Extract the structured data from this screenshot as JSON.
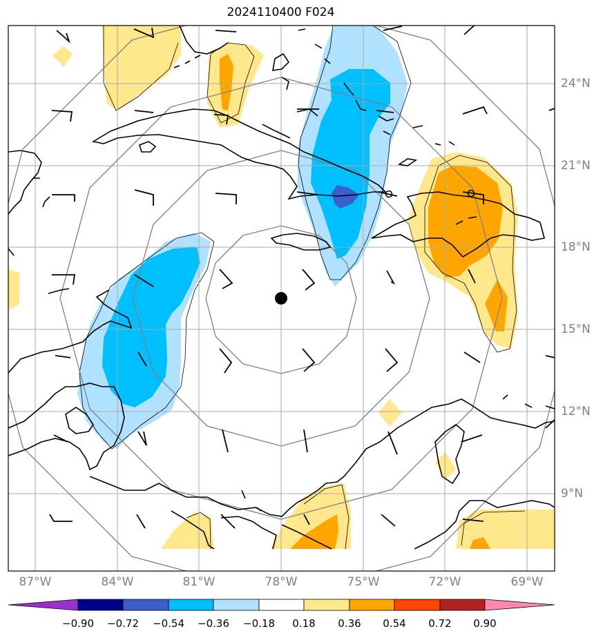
{
  "title": "2024110400 F024",
  "latitude_labels": [
    "24°N",
    "21°N",
    "18°N",
    "15°N",
    "12°N",
    "9°N"
  ],
  "longitude_labels": [
    "87°W",
    "84°W",
    "81°W",
    "78°W",
    "75°W",
    "72°W",
    "69°W"
  ],
  "colorbar": {
    "tick_labels": [
      "−0.90",
      "−0.72",
      "−0.54",
      "−0.36",
      "−0.18",
      "0.18",
      "0.36",
      "0.54",
      "0.72",
      "0.90"
    ],
    "colors": [
      "#9932cc",
      "#00008b",
      "#3a5fcd",
      "#00bfff",
      "#b0e2ff",
      "#ffffff",
      "#ffe88c",
      "#ffa500",
      "#ff4500",
      "#b22222",
      "#ff88b0"
    ]
  },
  "map": {
    "center_marker": "filled-circle",
    "range_rings": 4,
    "fill_colors": {
      "light_blue": "#b0e2ff",
      "blue": "#00bfff",
      "dark_blue": "#3a5fcd",
      "light_yellow": "#ffe88c",
      "orange": "#ffa500"
    }
  }
}
